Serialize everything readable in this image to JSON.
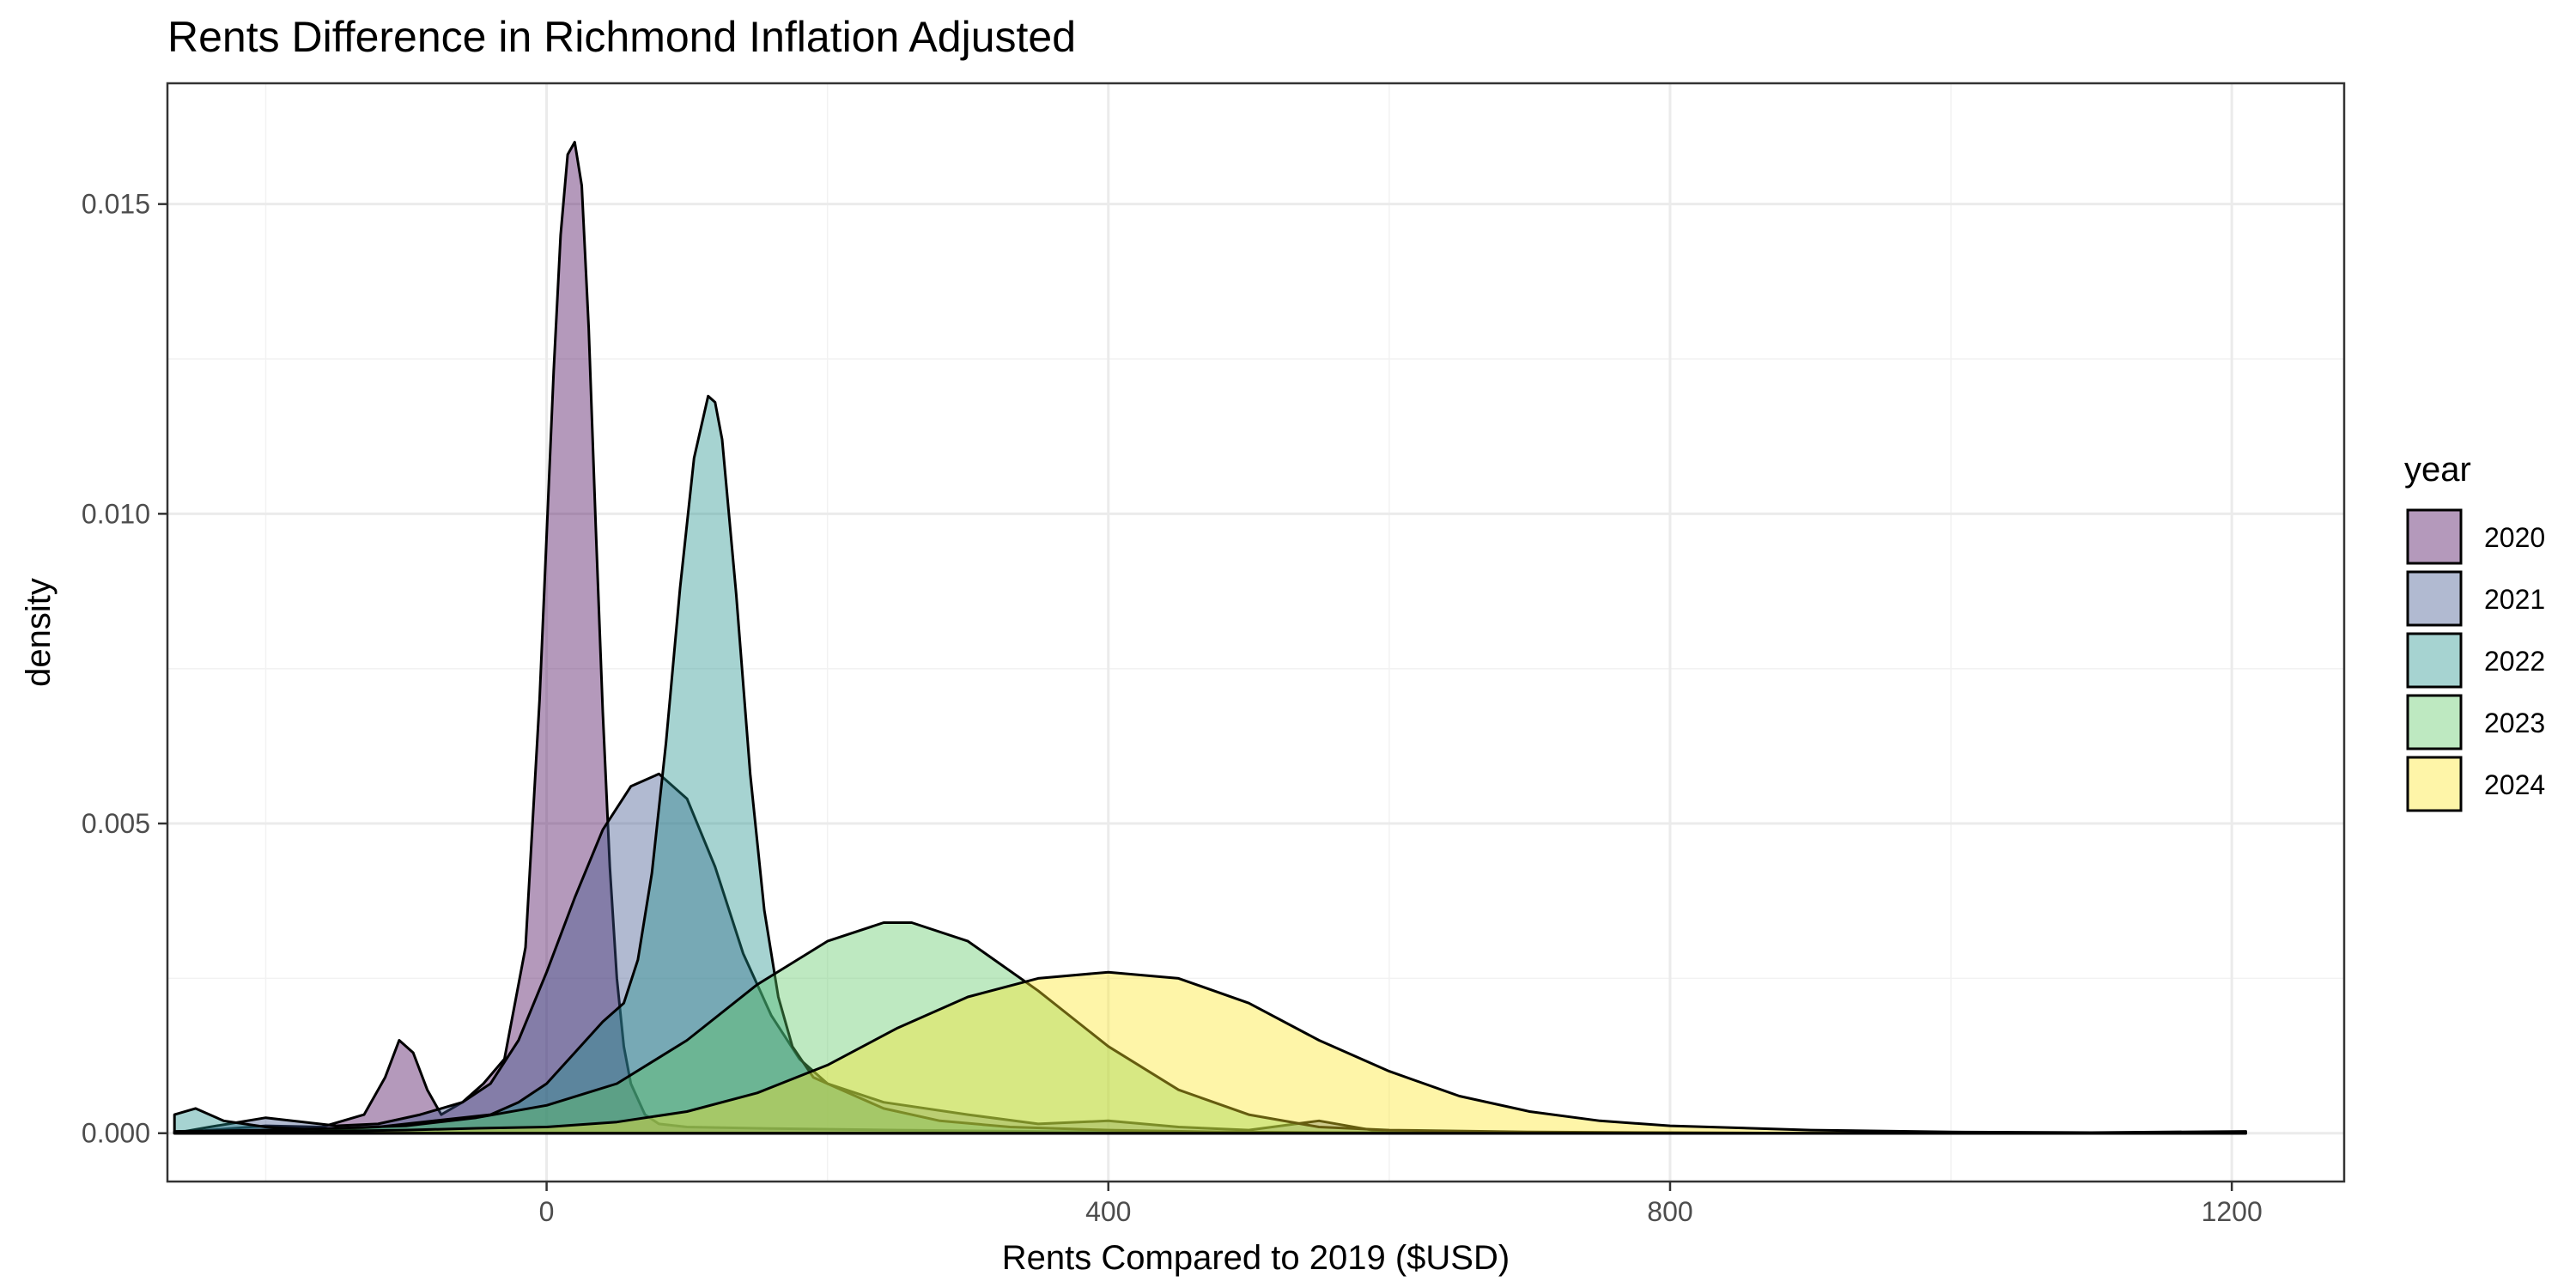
{
  "chart_data": {
    "type": "area",
    "title": "Rents Difference in Richmond Inflation Adjusted",
    "xlabel": "Rents Compared to 2019 ($USD)",
    "ylabel": "density",
    "xlim": [
      -270,
      1280
    ],
    "ylim": [
      -0.00078,
      0.01695
    ],
    "x_ticks": [
      0,
      400,
      800,
      1200
    ],
    "x_tick_labels": [
      "0",
      "400",
      "800",
      "1200"
    ],
    "y_ticks": [
      0.0,
      0.005,
      0.01,
      0.015
    ],
    "y_tick_labels": [
      "0.000",
      "0.005",
      "0.010",
      "0.015"
    ],
    "grid": true,
    "legend": {
      "title": "year",
      "placement": "right"
    },
    "series": [
      {
        "name": "2020",
        "color": "#440154",
        "x": [
          -265,
          -240,
          -200,
          -160,
          -130,
          -115,
          -105,
          -95,
          -85,
          -75,
          -60,
          -45,
          -30,
          -15,
          -5,
          5,
          10,
          15,
          20,
          25,
          30,
          35,
          40,
          45,
          50,
          55,
          60,
          70,
          80,
          100,
          150,
          250,
          350,
          450,
          550,
          700,
          900,
          1100,
          1210
        ],
        "y": [
          0.0,
          5e-05,
          0.00012,
          0.0001,
          0.0003,
          0.0009,
          0.0015,
          0.0013,
          0.0007,
          0.0003,
          0.0005,
          0.0008,
          0.0012,
          0.003,
          0.007,
          0.0123,
          0.0145,
          0.0158,
          0.016,
          0.0153,
          0.013,
          0.0098,
          0.0068,
          0.0043,
          0.0025,
          0.0014,
          0.0008,
          0.0003,
          0.00015,
          0.0001,
          8e-05,
          5e-05,
          3e-05,
          2e-05,
          1e-05,
          0.0,
          0.0,
          0.0,
          0.0
        ]
      },
      {
        "name": "2021",
        "color": "#3b528b",
        "x": [
          -265,
          -240,
          -200,
          -150,
          -120,
          -90,
          -60,
          -40,
          -20,
          0,
          20,
          40,
          60,
          80,
          100,
          120,
          140,
          160,
          180,
          200,
          240,
          300,
          350,
          400,
          450,
          500,
          550,
          600,
          800,
          1210
        ],
        "y": [
          0.0,
          0.0001,
          0.00025,
          0.00012,
          0.00015,
          0.0003,
          0.0005,
          0.0008,
          0.0015,
          0.0026,
          0.0038,
          0.0049,
          0.0056,
          0.0058,
          0.0054,
          0.0043,
          0.0029,
          0.0019,
          0.0012,
          0.0008,
          0.0005,
          0.0003,
          0.00015,
          0.0002,
          0.0001,
          5e-05,
          0.0002,
          0.0,
          0.0,
          0.0
        ]
      },
      {
        "name": "2022",
        "color": "#21908c",
        "x": [
          -265,
          -250,
          -230,
          -200,
          -160,
          -120,
          -80,
          -40,
          -20,
          0,
          20,
          40,
          55,
          65,
          75,
          85,
          95,
          105,
          115,
          120,
          125,
          135,
          145,
          155,
          165,
          175,
          190,
          210,
          240,
          280,
          330,
          400,
          480,
          560,
          700,
          900,
          1210
        ],
        "y": [
          0.0003,
          0.0004,
          0.0002,
          0.0001,
          5e-05,
          0.0001,
          0.0002,
          0.0003,
          0.0005,
          0.0008,
          0.0013,
          0.0018,
          0.0021,
          0.0028,
          0.0042,
          0.0063,
          0.0088,
          0.0109,
          0.0119,
          0.0118,
          0.0112,
          0.0087,
          0.0058,
          0.0036,
          0.0022,
          0.0014,
          0.0009,
          0.0007,
          0.0004,
          0.0002,
          0.0001,
          5e-05,
          2e-05,
          1e-05,
          0.0,
          0.0,
          0.0
        ]
      },
      {
        "name": "2023",
        "color": "#5dc963",
        "x": [
          -265,
          -200,
          -150,
          -100,
          -50,
          0,
          50,
          100,
          150,
          200,
          240,
          260,
          300,
          350,
          400,
          450,
          500,
          550,
          600,
          700,
          800,
          900,
          1000,
          1210
        ],
        "y": [
          3e-05,
          5e-05,
          8e-05,
          0.00012,
          0.00025,
          0.00045,
          0.0008,
          0.0015,
          0.0024,
          0.0031,
          0.0034,
          0.0034,
          0.0031,
          0.0023,
          0.0014,
          0.0007,
          0.0003,
          0.0001,
          5e-05,
          2e-05,
          1e-05,
          0.0,
          0.0,
          0.0
        ]
      },
      {
        "name": "2024",
        "color": "#fde725",
        "x": [
          -265,
          -200,
          -100,
          -50,
          0,
          50,
          100,
          150,
          200,
          250,
          300,
          350,
          400,
          450,
          500,
          550,
          600,
          650,
          700,
          750,
          800,
          900,
          1000,
          1100,
          1210
        ],
        "y": [
          0.0,
          2e-05,
          5e-05,
          8e-05,
          0.0001,
          0.00018,
          0.00035,
          0.00065,
          0.0011,
          0.0017,
          0.0022,
          0.0025,
          0.0026,
          0.0025,
          0.0021,
          0.0015,
          0.001,
          0.0006,
          0.00035,
          0.0002,
          0.00012,
          5e-05,
          2e-05,
          1e-05,
          3e-05
        ]
      }
    ]
  }
}
